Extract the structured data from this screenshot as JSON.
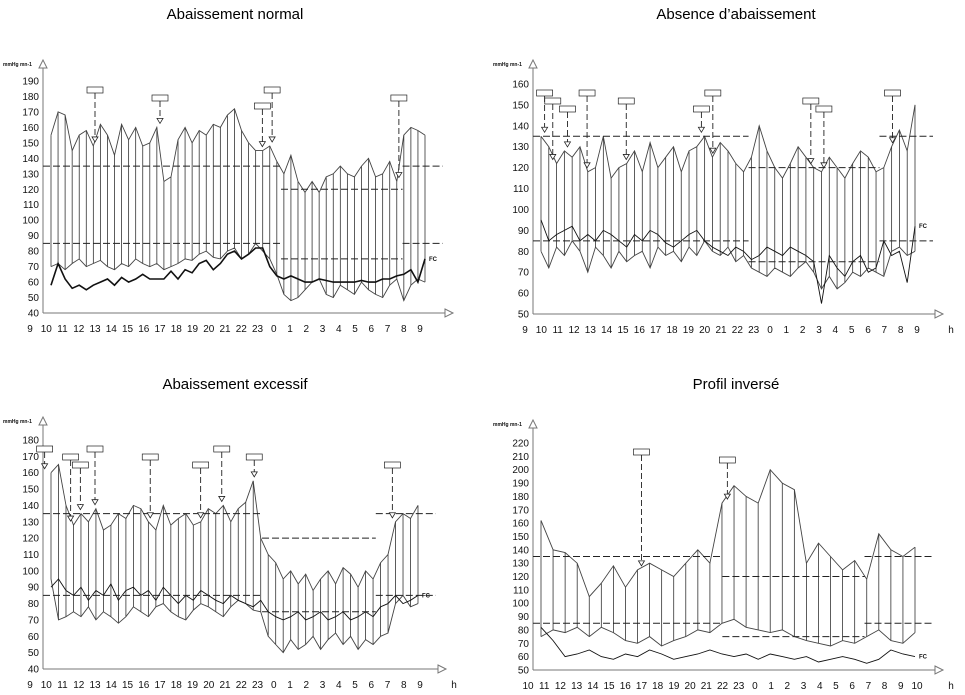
{
  "chart_data": [
    {
      "type": "line",
      "title": "Abaissement normal",
      "ylabel": "mmHg mn-1",
      "hour_ticks": [
        "9",
        "10",
        "11",
        "12",
        "13",
        "14",
        "15",
        "16",
        "17",
        "18",
        "19",
        "20",
        "21",
        "22",
        "23",
        "0",
        "1",
        "2",
        "3",
        "4",
        "5",
        "6",
        "7",
        "8",
        "9"
      ],
      "x_unit": "",
      "yticks": [
        40,
        50,
        60,
        70,
        80,
        90,
        100,
        110,
        120,
        130,
        140,
        150,
        160,
        170,
        180,
        190
      ],
      "ylim": [
        40,
        190
      ],
      "series_label": "FC",
      "thresholds_day": [
        135,
        85
      ],
      "thresholds_night": [
        120,
        75
      ],
      "systolic": [
        155,
        170,
        168,
        145,
        155,
        158,
        148,
        162,
        155,
        142,
        162,
        152,
        160,
        148,
        150,
        160,
        125,
        128,
        152,
        160,
        150,
        158,
        155,
        162,
        160,
        168,
        172,
        158,
        150,
        145,
        145,
        148,
        138,
        130,
        142,
        125,
        118,
        125,
        118,
        128,
        130,
        135,
        130,
        128,
        135,
        140,
        128,
        130,
        138,
        125,
        155,
        160,
        158,
        155
      ],
      "diastolic": [
        70,
        72,
        68,
        72,
        75,
        70,
        72,
        74,
        70,
        68,
        72,
        70,
        75,
        72,
        70,
        72,
        68,
        70,
        72,
        75,
        74,
        78,
        80,
        76,
        75,
        80,
        82,
        75,
        78,
        85,
        80,
        75,
        65,
        52,
        48,
        50,
        55,
        60,
        62,
        52,
        50,
        58,
        55,
        52,
        60,
        55,
        52,
        50,
        58,
        62,
        48,
        58,
        62,
        60
      ],
      "heart_rate": [
        58,
        72,
        62,
        56,
        58,
        55,
        58,
        60,
        62,
        58,
        63,
        60,
        62,
        65,
        62,
        62,
        62,
        67,
        62,
        68,
        66,
        72,
        74,
        68,
        72,
        78,
        80,
        75,
        78,
        82,
        82,
        70,
        64,
        62,
        64,
        62,
        60,
        60,
        62,
        61,
        60,
        60,
        60,
        60,
        61,
        60,
        60,
        62,
        62,
        64,
        65,
        68,
        60,
        75
      ],
      "events": [
        {
          "hour": 13,
          "label": ""
        },
        {
          "hour": 17,
          "label": ""
        },
        {
          "hour": 23.3,
          "label": ""
        },
        {
          "hour": 23.9,
          "label": ""
        },
        {
          "hour": 7.7,
          "label": ""
        }
      ]
    },
    {
      "type": "line",
      "title": "Absence d’abaissement",
      "ylabel": "mmHg mn-1",
      "hour_ticks": [
        "9",
        "10",
        "11",
        "12",
        "13",
        "14",
        "15",
        "16",
        "17",
        "18",
        "19",
        "20",
        "21",
        "22",
        "23",
        "0",
        "1",
        "2",
        "3",
        "4",
        "5",
        "6",
        "7",
        "8",
        "9"
      ],
      "x_unit": "h",
      "yticks": [
        50,
        60,
        70,
        80,
        90,
        100,
        110,
        120,
        130,
        140,
        150,
        160
      ],
      "ylim": [
        50,
        160
      ],
      "series_label": "FC",
      "thresholds_day": [
        135,
        85
      ],
      "thresholds_night": [
        120,
        75
      ],
      "systolic": [
        135,
        130,
        122,
        128,
        125,
        130,
        118,
        120,
        135,
        115,
        120,
        122,
        128,
        118,
        132,
        120,
        125,
        130,
        118,
        128,
        130,
        135,
        125,
        132,
        128,
        122,
        118,
        125,
        140,
        128,
        120,
        115,
        122,
        130,
        125,
        120,
        118,
        125,
        120,
        115,
        122,
        128,
        125,
        118,
        120,
        130,
        138,
        128,
        150
      ],
      "diastolic": [
        80,
        72,
        82,
        78,
        85,
        80,
        70,
        82,
        78,
        72,
        80,
        75,
        78,
        80,
        72,
        82,
        78,
        80,
        75,
        82,
        78,
        85,
        80,
        78,
        82,
        75,
        78,
        72,
        70,
        68,
        72,
        70,
        68,
        72,
        75,
        70,
        62,
        68,
        62,
        65,
        70,
        68,
        72,
        70,
        68,
        80,
        82,
        78,
        80
      ],
      "heart_rate": [
        95,
        85,
        88,
        90,
        92,
        85,
        88,
        85,
        90,
        88,
        85,
        82,
        88,
        85,
        90,
        88,
        84,
        82,
        85,
        88,
        90,
        85,
        82,
        80,
        78,
        82,
        80,
        76,
        78,
        82,
        80,
        78,
        82,
        80,
        78,
        75,
        55,
        78,
        72,
        68,
        75,
        78,
        70,
        72,
        85,
        78,
        80,
        65,
        92
      ],
      "events": [
        {
          "hour": 10.2,
          "label": ""
        },
        {
          "hour": 10.7,
          "label": ""
        },
        {
          "hour": 11.6,
          "label": ""
        },
        {
          "hour": 12.8,
          "label": ""
        },
        {
          "hour": 15.2,
          "label": ""
        },
        {
          "hour": 19.8,
          "label": ""
        },
        {
          "hour": 20.5,
          "label": ""
        },
        {
          "hour": 2.5,
          "label": ""
        },
        {
          "hour": 3.3,
          "label": ""
        },
        {
          "hour": 7.5,
          "label": ""
        }
      ]
    },
    {
      "type": "line",
      "title": "Abaissement excessif",
      "ylabel": "mmHg mn-1",
      "hour_ticks": [
        "9",
        "10",
        "11",
        "12",
        "13",
        "14",
        "15",
        "16",
        "17",
        "18",
        "19",
        "20",
        "21",
        "22",
        "23",
        "0",
        "1",
        "2",
        "3",
        "4",
        "5",
        "6",
        "7",
        "8",
        "9"
      ],
      "x_unit": "h",
      "yticks": [
        40,
        50,
        60,
        70,
        80,
        90,
        100,
        110,
        120,
        130,
        140,
        150,
        160,
        170,
        180
      ],
      "ylim": [
        40,
        180
      ],
      "series_label": "FC",
      "thresholds_day": [
        135,
        85
      ],
      "thresholds_night": [
        120,
        75
      ],
      "systolic": [
        160,
        165,
        140,
        128,
        135,
        130,
        138,
        125,
        128,
        135,
        132,
        140,
        138,
        130,
        125,
        140,
        128,
        132,
        135,
        128,
        130,
        138,
        135,
        140,
        130,
        138,
        142,
        155,
        120,
        110,
        105,
        95,
        100,
        92,
        98,
        88,
        95,
        100,
        92,
        102,
        98,
        90,
        100,
        95,
        105,
        110,
        130,
        135,
        132,
        140
      ],
      "diastolic": [
        95,
        70,
        72,
        75,
        72,
        78,
        70,
        75,
        72,
        68,
        72,
        78,
        75,
        72,
        78,
        80,
        75,
        72,
        70,
        76,
        80,
        78,
        75,
        72,
        78,
        82,
        80,
        76,
        75,
        60,
        55,
        50,
        58,
        52,
        55,
        60,
        52,
        58,
        62,
        55,
        60,
        52,
        58,
        55,
        60,
        62,
        80,
        85,
        78,
        80
      ],
      "heart_rate": [
        90,
        95,
        88,
        85,
        90,
        82,
        88,
        85,
        92,
        82,
        88,
        90,
        85,
        88,
        82,
        90,
        85,
        80,
        85,
        82,
        88,
        85,
        82,
        80,
        85,
        82,
        80,
        78,
        82,
        75,
        72,
        70,
        72,
        75,
        70,
        72,
        75,
        70,
        72,
        75,
        70,
        72,
        75,
        72,
        78,
        80,
        85,
        80,
        82,
        85
      ],
      "events": [
        {
          "hour": 9.9,
          "label": ""
        },
        {
          "hour": 11.5,
          "label": ""
        },
        {
          "hour": 12.1,
          "label": ""
        },
        {
          "hour": 13,
          "label": ""
        },
        {
          "hour": 16.4,
          "label": ""
        },
        {
          "hour": 19.5,
          "label": ""
        },
        {
          "hour": 20.8,
          "label": ""
        },
        {
          "hour": 22.8,
          "label": ""
        },
        {
          "hour": 7.3,
          "label": ""
        }
      ]
    },
    {
      "type": "line",
      "title": "Profil inversé",
      "ylabel": "mmHg mn-1",
      "hour_ticks": [
        "10",
        "11",
        "12",
        "13",
        "14",
        "15",
        "16",
        "17",
        "18",
        "19",
        "20",
        "21",
        "22",
        "23",
        "0",
        "1",
        "2",
        "3",
        "4",
        "5",
        "6",
        "7",
        "8",
        "9",
        "10"
      ],
      "x_unit": "h",
      "yticks": [
        50,
        60,
        70,
        80,
        90,
        100,
        110,
        120,
        130,
        140,
        150,
        160,
        170,
        180,
        190,
        200,
        210,
        220
      ],
      "ylim": [
        50,
        220
      ],
      "series_label": "FC",
      "thresholds_day": [
        135,
        85
      ],
      "thresholds_night": [
        120,
        75
      ],
      "systolic": [
        162,
        140,
        138,
        130,
        105,
        115,
        128,
        112,
        125,
        130,
        125,
        120,
        130,
        140,
        130,
        175,
        188,
        180,
        175,
        200,
        190,
        185,
        130,
        145,
        135,
        125,
        132,
        118,
        152,
        140,
        135,
        142
      ],
      "diastolic": [
        75,
        80,
        78,
        82,
        75,
        82,
        78,
        72,
        70,
        75,
        68,
        72,
        75,
        80,
        78,
        85,
        88,
        82,
        80,
        78,
        80,
        75,
        72,
        70,
        68,
        72,
        70,
        75,
        80,
        72,
        70,
        78
      ],
      "heart_rate": [
        82,
        72,
        60,
        62,
        65,
        60,
        58,
        62,
        60,
        65,
        62,
        58,
        60,
        62,
        65,
        62,
        60,
        62,
        58,
        62,
        60,
        58,
        60,
        56,
        58,
        60,
        58,
        55,
        58,
        65,
        62,
        60
      ],
      "events": [
        {
          "hour": 17,
          "label": ""
        },
        {
          "hour": 22.3,
          "label": ""
        }
      ]
    }
  ]
}
